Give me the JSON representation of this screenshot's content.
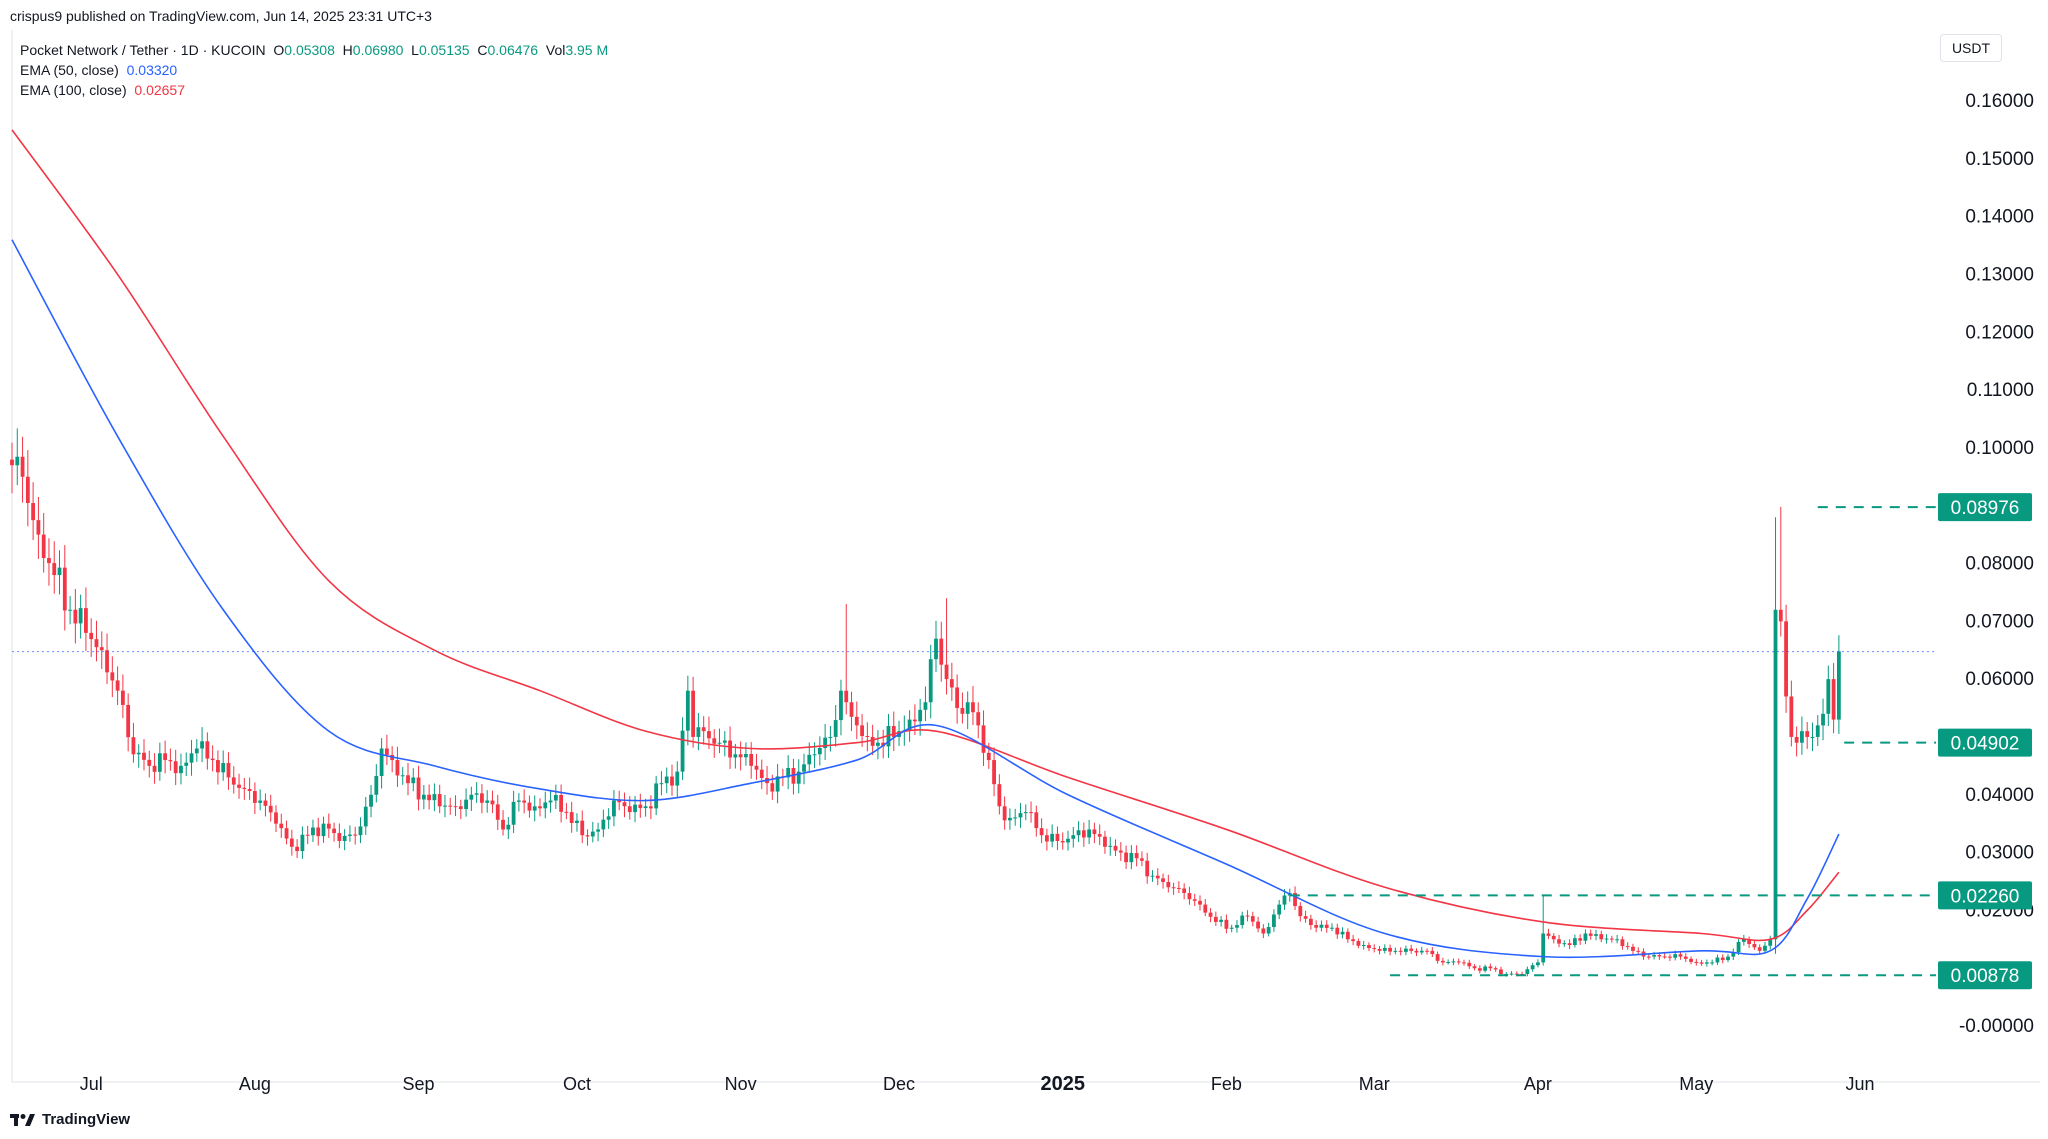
{
  "header": {
    "published_text": "crispus9 published on TradingView.com, Jun 14, 2025 23:31 UTC+3"
  },
  "legend": {
    "symbol_line": "Pocket Network / Tether · 1D · KUCOIN",
    "open_label": "O",
    "open": "0.05308",
    "high_label": "H",
    "high": "0.06980",
    "low_label": "L",
    "low": "0.05135",
    "close_label": "C",
    "close": "0.06476",
    "vol_label": "Vol",
    "vol": "3.95 M",
    "ema50_label": "EMA (50, close)",
    "ema50_value": "0.03320",
    "ema100_label": "EMA (100, close)",
    "ema100_value": "0.02657"
  },
  "currency_button": "USDT",
  "brand": "TradingView",
  "colors": {
    "up": "#089981",
    "down": "#f23645",
    "ema50": "#2962ff",
    "ema100": "#f23645",
    "level": "#089981"
  },
  "chart_data": {
    "type": "candlestick",
    "symbol": "Pocket Network / Tether",
    "timeframe": "1D",
    "exchange": "KUCOIN",
    "y_ticks": [
      "0.16000",
      "0.15000",
      "0.14000",
      "0.13000",
      "0.12000",
      "0.11000",
      "0.10000",
      "0.08000",
      "0.07000",
      "0.06000",
      "0.04000",
      "0.03000",
      "0.02000",
      "-0.00000"
    ],
    "ylim": [
      -0.004,
      0.17
    ],
    "x_ticks": [
      {
        "label": "Jul",
        "day": 15,
        "bold": false
      },
      {
        "label": "Aug",
        "day": 46,
        "bold": false
      },
      {
        "label": "Sep",
        "day": 77,
        "bold": false
      },
      {
        "label": "Oct",
        "day": 107,
        "bold": false
      },
      {
        "label": "Nov",
        "day": 138,
        "bold": false
      },
      {
        "label": "Dec",
        "day": 168,
        "bold": false
      },
      {
        "label": "2025",
        "day": 199,
        "bold": true
      },
      {
        "label": "Feb",
        "day": 230,
        "bold": false
      },
      {
        "label": "Mar",
        "day": 258,
        "bold": false
      },
      {
        "label": "Apr",
        "day": 289,
        "bold": false
      },
      {
        "label": "May",
        "day": 319,
        "bold": false
      },
      {
        "label": "Jun",
        "day": 350,
        "bold": false
      }
    ],
    "current_price": 0.06476,
    "price_levels": [
      {
        "value": 0.08976,
        "label": "0.08976",
        "from_day": 342
      },
      {
        "value": 0.04902,
        "label": "0.04902",
        "from_day": 347
      },
      {
        "value": 0.0226,
        "label": "0.02260",
        "from_day": 242
      },
      {
        "value": 0.00878,
        "label": "0.00878",
        "from_day": 261
      }
    ],
    "close_anchors": [
      [
        0,
        0.097
      ],
      [
        2,
        0.095
      ],
      [
        5,
        0.085
      ],
      [
        8,
        0.078
      ],
      [
        11,
        0.072
      ],
      [
        14,
        0.068
      ],
      [
        17,
        0.065
      ],
      [
        20,
        0.058
      ],
      [
        23,
        0.047
      ],
      [
        26,
        0.045
      ],
      [
        29,
        0.046
      ],
      [
        32,
        0.045
      ],
      [
        35,
        0.048
      ],
      [
        38,
        0.046
      ],
      [
        41,
        0.043
      ],
      [
        44,
        0.041
      ],
      [
        47,
        0.039
      ],
      [
        50,
        0.035
      ],
      [
        53,
        0.031
      ],
      [
        56,
        0.033
      ],
      [
        59,
        0.035
      ],
      [
        62,
        0.032
      ],
      [
        65,
        0.033
      ],
      [
        68,
        0.04
      ],
      [
        70,
        0.048
      ],
      [
        72,
        0.046
      ],
      [
        75,
        0.042
      ],
      [
        78,
        0.04
      ],
      [
        81,
        0.038
      ],
      [
        84,
        0.038
      ],
      [
        87,
        0.04
      ],
      [
        90,
        0.039
      ],
      [
        93,
        0.034
      ],
      [
        96,
        0.039
      ],
      [
        99,
        0.038
      ],
      [
        102,
        0.039
      ],
      [
        105,
        0.037
      ],
      [
        108,
        0.033
      ],
      [
        111,
        0.034
      ],
      [
        114,
        0.039
      ],
      [
        117,
        0.037
      ],
      [
        120,
        0.038
      ],
      [
        123,
        0.042
      ],
      [
        126,
        0.044
      ],
      [
        128,
        0.058
      ],
      [
        129,
        0.05
      ],
      [
        131,
        0.051
      ],
      [
        134,
        0.049
      ],
      [
        137,
        0.047
      ],
      [
        140,
        0.045
      ],
      [
        143,
        0.042
      ],
      [
        146,
        0.043
      ],
      [
        149,
        0.044
      ],
      [
        152,
        0.047
      ],
      [
        155,
        0.05
      ],
      [
        157,
        0.058
      ],
      [
        158,
        0.056
      ],
      [
        160,
        0.052
      ],
      [
        162,
        0.05
      ],
      [
        164,
        0.049
      ],
      [
        167,
        0.05
      ],
      [
        170,
        0.053
      ],
      [
        173,
        0.056
      ],
      [
        175,
        0.067
      ],
      [
        177,
        0.06
      ],
      [
        179,
        0.055
      ],
      [
        181,
        0.056
      ],
      [
        183,
        0.052
      ],
      [
        185,
        0.046
      ],
      [
        187,
        0.038
      ],
      [
        189,
        0.036
      ],
      [
        192,
        0.037
      ],
      [
        195,
        0.033
      ],
      [
        198,
        0.032
      ],
      [
        201,
        0.033
      ],
      [
        204,
        0.034
      ],
      [
        207,
        0.031
      ],
      [
        210,
        0.03
      ],
      [
        213,
        0.029
      ],
      [
        216,
        0.026
      ],
      [
        219,
        0.024
      ],
      [
        222,
        0.023
      ],
      [
        225,
        0.021
      ],
      [
        228,
        0.018
      ],
      [
        231,
        0.017
      ],
      [
        234,
        0.019
      ],
      [
        237,
        0.016
      ],
      [
        240,
        0.021
      ],
      [
        242,
        0.023
      ],
      [
        244,
        0.019
      ],
      [
        247,
        0.017
      ],
      [
        250,
        0.017
      ],
      [
        253,
        0.015
      ],
      [
        256,
        0.014
      ],
      [
        259,
        0.013
      ],
      [
        262,
        0.013
      ],
      [
        265,
        0.013
      ],
      [
        268,
        0.013
      ],
      [
        271,
        0.011
      ],
      [
        274,
        0.011
      ],
      [
        277,
        0.01
      ],
      [
        280,
        0.01
      ],
      [
        283,
        0.009
      ],
      [
        286,
        0.009
      ],
      [
        289,
        0.011
      ],
      [
        290,
        0.016
      ],
      [
        292,
        0.015
      ],
      [
        295,
        0.014
      ],
      [
        298,
        0.016
      ],
      [
        301,
        0.015
      ],
      [
        304,
        0.015
      ],
      [
        307,
        0.013
      ],
      [
        310,
        0.012
      ],
      [
        313,
        0.012
      ],
      [
        316,
        0.012
      ],
      [
        319,
        0.011
      ],
      [
        322,
        0.011
      ],
      [
        325,
        0.012
      ],
      [
        328,
        0.015
      ],
      [
        331,
        0.013
      ],
      [
        333,
        0.015
      ],
      [
        334,
        0.072
      ],
      [
        335,
        0.07
      ],
      [
        336,
        0.057
      ],
      [
        337,
        0.05
      ],
      [
        338,
        0.049
      ],
      [
        339,
        0.051
      ],
      [
        340,
        0.05
      ],
      [
        341,
        0.05
      ],
      [
        342,
        0.052
      ],
      [
        343,
        0.054
      ],
      [
        344,
        0.06
      ],
      [
        345,
        0.053
      ],
      [
        346,
        0.0648
      ]
    ],
    "spikes": [
      {
        "day": 334,
        "high": 0.088
      },
      {
        "day": 335,
        "high": 0.0898
      },
      {
        "day": 290,
        "high": 0.0226
      },
      {
        "day": 177,
        "high": 0.074
      },
      {
        "day": 158,
        "high": 0.073
      }
    ],
    "ema50_points": [
      [
        0,
        0.136
      ],
      [
        20,
        0.102
      ],
      [
        40,
        0.072
      ],
      [
        60,
        0.051
      ],
      [
        80,
        0.045
      ],
      [
        100,
        0.041
      ],
      [
        120,
        0.039
      ],
      [
        140,
        0.042
      ],
      [
        160,
        0.046
      ],
      [
        175,
        0.052
      ],
      [
        200,
        0.04
      ],
      [
        230,
        0.028
      ],
      [
        260,
        0.016
      ],
      [
        290,
        0.012
      ],
      [
        320,
        0.013
      ],
      [
        333,
        0.013
      ],
      [
        340,
        0.022
      ],
      [
        346,
        0.0332
      ]
    ],
    "ema100_points": [
      [
        0,
        0.155
      ],
      [
        20,
        0.13
      ],
      [
        40,
        0.102
      ],
      [
        60,
        0.077
      ],
      [
        80,
        0.065
      ],
      [
        100,
        0.058
      ],
      [
        120,
        0.051
      ],
      [
        140,
        0.048
      ],
      [
        160,
        0.049
      ],
      [
        175,
        0.051
      ],
      [
        200,
        0.043
      ],
      [
        230,
        0.034
      ],
      [
        260,
        0.024
      ],
      [
        290,
        0.018
      ],
      [
        320,
        0.016
      ],
      [
        333,
        0.015
      ],
      [
        340,
        0.02
      ],
      [
        346,
        0.0266
      ]
    ]
  }
}
